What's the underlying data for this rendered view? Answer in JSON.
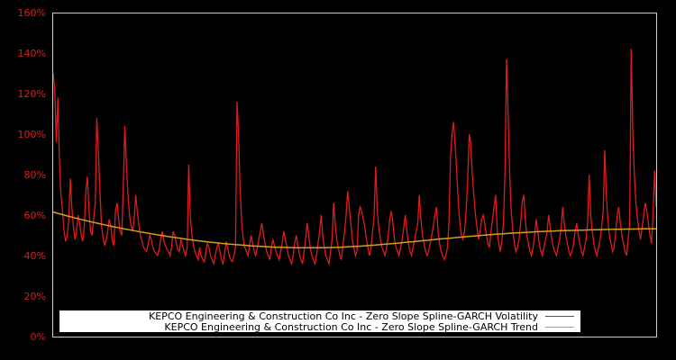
{
  "chart_data": {
    "type": "line",
    "title": "",
    "xlabel": "",
    "ylabel": "",
    "ylim": [
      0,
      160
    ],
    "y_ticks": [
      "0%",
      "20%",
      "40%",
      "60%",
      "80%",
      "100%",
      "120%",
      "140%",
      "160%"
    ],
    "y_tick_values": [
      0,
      20,
      40,
      60,
      80,
      100,
      120,
      140,
      160
    ],
    "grid": false,
    "legend_position": "lower center",
    "background": "#000000",
    "frame_color": "#cccccc",
    "tick_color": "#e31a1c",
    "x_range_note": "x axis has no tick labels; samples evenly spaced across the plot width",
    "series": [
      {
        "name": "KEPCO Engineering & Construction Co Inc - Zero Slope Spline-GARCH Volatility",
        "color": "#e31a1c",
        "values": [
          130,
          122,
          96,
          118,
          88,
          70,
          62,
          52,
          47,
          50,
          58,
          78,
          64,
          54,
          48,
          52,
          60,
          56,
          50,
          47,
          55,
          72,
          79,
          62,
          52,
          50,
          58,
          66,
          108,
          92,
          72,
          55,
          49,
          45,
          48,
          52,
          58,
          54,
          47,
          45,
          62,
          66,
          58,
          52,
          50,
          74,
          104,
          85,
          70,
          60,
          55,
          52,
          58,
          70,
          62,
          55,
          50,
          47,
          44,
          43,
          42,
          46,
          50,
          48,
          44,
          42,
          41,
          40,
          43,
          48,
          52,
          47,
          45,
          43,
          42,
          40,
          44,
          52,
          50,
          46,
          43,
          42,
          48,
          45,
          42,
          40,
          44,
          85,
          60,
          50,
          45,
          42,
          40,
          38,
          44,
          40,
          38,
          37,
          42,
          46,
          44,
          40,
          38,
          36,
          40,
          44,
          46,
          42,
          38,
          36,
          41,
          47,
          44,
          40,
          38,
          37,
          40,
          44,
          116,
          100,
          72,
          56,
          48,
          44,
          42,
          40,
          45,
          50,
          46,
          42,
          40,
          44,
          48,
          52,
          56,
          50,
          46,
          42,
          40,
          38,
          44,
          48,
          45,
          42,
          40,
          38,
          42,
          46,
          52,
          48,
          44,
          40,
          38,
          36,
          40,
          46,
          50,
          45,
          41,
          38,
          36,
          42,
          48,
          56,
          50,
          44,
          40,
          38,
          36,
          40,
          46,
          52,
          60,
          50,
          44,
          40,
          38,
          36,
          42,
          48,
          66,
          56,
          48,
          44,
          40,
          38,
          45,
          52,
          60,
          72,
          64,
          56,
          48,
          44,
          40,
          42,
          60,
          64,
          62,
          58,
          54,
          48,
          44,
          40,
          44,
          52,
          60,
          84,
          62,
          54,
          48,
          44,
          42,
          40,
          44,
          50,
          58,
          62,
          56,
          48,
          44,
          42,
          40,
          44,
          48,
          54,
          60,
          52,
          46,
          42,
          40,
          44,
          48,
          52,
          56,
          70,
          58,
          50,
          46,
          42,
          40,
          42,
          46,
          50,
          55,
          60,
          64,
          52,
          46,
          42,
          40,
          38,
          40,
          44,
          56,
          88,
          100,
          106,
          94,
          82,
          66,
          56,
          50,
          48,
          52,
          62,
          76,
          100,
          95,
          80,
          70,
          60,
          54,
          48,
          52,
          58,
          60,
          56,
          50,
          46,
          44,
          52,
          58,
          64,
          70,
          52,
          46,
          42,
          48,
          56,
          82,
          137,
          110,
          80,
          62,
          52,
          46,
          42,
          44,
          48,
          56,
          66,
          70,
          58,
          50,
          46,
          42,
          40,
          44,
          50,
          58,
          52,
          46,
          42,
          40,
          44,
          48,
          52,
          60,
          54,
          48,
          44,
          42,
          40,
          44,
          48,
          54,
          64,
          56,
          50,
          46,
          42,
          40,
          42,
          46,
          52,
          56,
          50,
          46,
          42,
          40,
          44,
          48,
          56,
          80,
          60,
          52,
          46,
          42,
          40,
          44,
          48,
          54,
          62,
          92,
          70,
          58,
          50,
          46,
          42,
          44,
          52,
          60,
          64,
          56,
          50,
          46,
          42,
          40,
          48,
          56,
          142,
          100,
          80,
          66,
          58,
          52,
          48,
          54,
          60,
          66,
          62,
          56,
          50,
          46,
          60,
          82,
          64
        ]
      },
      {
        "name": "KEPCO Engineering & Construction Co Inc - Zero Slope Spline-GARCH Trend",
        "color": "#d4a017",
        "values": [
          61.5,
          60.5,
          59.5,
          58.6,
          57.7,
          56.8,
          56.0,
          55.2,
          54.4,
          53.7,
          53.0,
          52.3,
          51.6,
          51.0,
          50.4,
          49.8,
          49.2,
          48.7,
          48.2,
          47.7,
          47.2,
          46.8,
          46.4,
          46.0,
          45.7,
          45.4,
          45.1,
          44.8,
          44.6,
          44.4,
          44.2,
          44.1,
          44.0,
          43.9,
          43.9,
          43.9,
          43.9,
          43.9,
          44.0,
          44.1,
          44.3,
          44.5,
          44.7,
          45.0,
          45.3,
          45.6,
          45.9,
          46.2,
          46.6,
          46.9,
          47.3,
          47.6,
          48.0,
          48.3,
          48.6,
          49.0,
          49.3,
          49.6,
          49.9,
          50.2,
          50.5,
          50.7,
          51.0,
          51.2,
          51.4,
          51.6,
          51.8,
          52.0,
          52.1,
          52.3,
          52.4,
          52.5,
          52.6,
          52.7,
          52.8,
          52.9,
          53.0,
          53.0,
          53.1,
          53.1,
          53.2,
          53.2,
          53.2
        ]
      }
    ]
  },
  "legend": {
    "items": [
      {
        "label": "KEPCO Engineering & Construction Co Inc - Zero Slope Spline-GARCH Volatility",
        "color": "#e31a1c"
      },
      {
        "label": "KEPCO Engineering & Construction Co Inc - Zero Slope Spline-GARCH Trend",
        "color": "#d4a017"
      }
    ]
  }
}
